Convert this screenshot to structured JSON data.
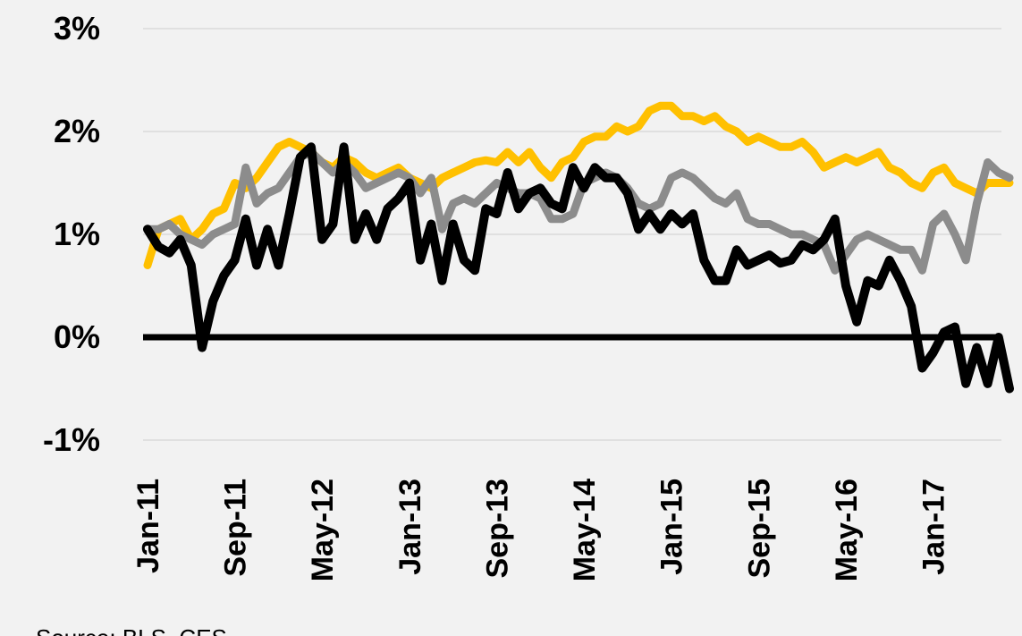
{
  "chart_data": {
    "type": "line",
    "categories": [
      "Jan-11",
      null,
      null,
      null,
      null,
      null,
      null,
      null,
      "Sep-11",
      null,
      null,
      null,
      null,
      null,
      null,
      null,
      "May-12",
      null,
      null,
      null,
      null,
      null,
      null,
      null,
      "Jan-13",
      null,
      null,
      null,
      null,
      null,
      null,
      null,
      "Sep-13",
      null,
      null,
      null,
      null,
      null,
      null,
      null,
      "May-14",
      null,
      null,
      null,
      null,
      null,
      null,
      null,
      "Jan-15",
      null,
      null,
      null,
      null,
      null,
      null,
      null,
      "Sep-15",
      null,
      null,
      null,
      null,
      null,
      null,
      null,
      "May-16",
      null,
      null,
      null,
      null,
      null,
      null,
      null,
      "Jan-17",
      null,
      null,
      null,
      null,
      null,
      null,
      null
    ],
    "series": [
      {
        "color": "#ffc000",
        "values": [
          0.7,
          1.05,
          1.1,
          1.15,
          0.95,
          1.05,
          1.2,
          1.25,
          1.5,
          1.45,
          1.55,
          1.7,
          1.85,
          1.9,
          1.85,
          1.8,
          1.7,
          1.65,
          1.75,
          1.7,
          1.6,
          1.55,
          1.6,
          1.65,
          1.55,
          1.5,
          1.45,
          1.55,
          1.6,
          1.65,
          1.7,
          1.72,
          1.7,
          1.8,
          1.7,
          1.8,
          1.65,
          1.55,
          1.7,
          1.75,
          1.9,
          1.95,
          1.95,
          2.05,
          2.0,
          2.05,
          2.2,
          2.25,
          2.25,
          2.15,
          2.15,
          2.1,
          2.15,
          2.05,
          2.0,
          1.9,
          1.95,
          1.9,
          1.85,
          1.85,
          1.9,
          1.8,
          1.65,
          1.7,
          1.75,
          1.7,
          1.75,
          1.8,
          1.65,
          1.6,
          1.5,
          1.45,
          1.6,
          1.65,
          1.5,
          1.45,
          1.4,
          1.5,
          1.5,
          1.5
        ]
      },
      {
        "color": "#8c8c8c",
        "values": [
          1.05,
          1.05,
          1.1,
          1.0,
          0.95,
          0.9,
          1.0,
          1.05,
          1.1,
          1.65,
          1.3,
          1.4,
          1.45,
          1.6,
          1.75,
          1.8,
          1.7,
          1.6,
          1.7,
          1.6,
          1.45,
          1.5,
          1.55,
          1.6,
          1.55,
          1.4,
          1.55,
          1.05,
          1.3,
          1.35,
          1.3,
          1.4,
          1.5,
          1.45,
          1.4,
          1.4,
          1.35,
          1.15,
          1.15,
          1.2,
          1.5,
          1.55,
          1.6,
          1.55,
          1.45,
          1.3,
          1.25,
          1.3,
          1.55,
          1.6,
          1.55,
          1.45,
          1.35,
          1.3,
          1.4,
          1.15,
          1.1,
          1.1,
          1.05,
          1.0,
          1.0,
          0.95,
          0.9,
          0.65,
          0.8,
          0.95,
          1.0,
          0.95,
          0.9,
          0.85,
          0.85,
          0.65,
          1.1,
          1.2,
          1.0,
          0.75,
          1.3,
          1.7,
          1.6,
          1.55
        ]
      },
      {
        "color": "#000000",
        "values": [
          1.05,
          0.88,
          0.82,
          0.95,
          0.7,
          -0.1,
          0.35,
          0.6,
          0.75,
          1.15,
          0.7,
          1.05,
          0.7,
          1.2,
          1.75,
          1.85,
          0.95,
          1.1,
          1.85,
          0.95,
          1.2,
          0.95,
          1.25,
          1.35,
          1.5,
          0.75,
          1.1,
          0.55,
          1.1,
          0.75,
          0.65,
          1.25,
          1.2,
          1.6,
          1.25,
          1.4,
          1.45,
          1.3,
          1.25,
          1.65,
          1.45,
          1.65,
          1.55,
          1.55,
          1.4,
          1.05,
          1.2,
          1.05,
          1.2,
          1.1,
          1.2,
          0.75,
          0.55,
          0.55,
          0.85,
          0.7,
          0.75,
          0.8,
          0.72,
          0.75,
          0.9,
          0.85,
          0.95,
          1.15,
          0.5,
          0.15,
          0.55,
          0.5,
          0.75,
          0.55,
          0.3,
          -0.3,
          -0.15,
          0.05,
          0.1,
          -0.45,
          -0.1,
          -0.45,
          0.0,
          -0.5
        ]
      }
    ],
    "ylim": [
      -1,
      3
    ],
    "yticks": [
      {
        "value": -1,
        "label": "-1%"
      },
      {
        "value": 0,
        "label": "0%"
      },
      {
        "value": 1,
        "label": "1%"
      },
      {
        "value": 2,
        "label": "2%"
      },
      {
        "value": 3,
        "label": "3%"
      }
    ],
    "grid": true,
    "source": "Source: BLS, CES"
  }
}
